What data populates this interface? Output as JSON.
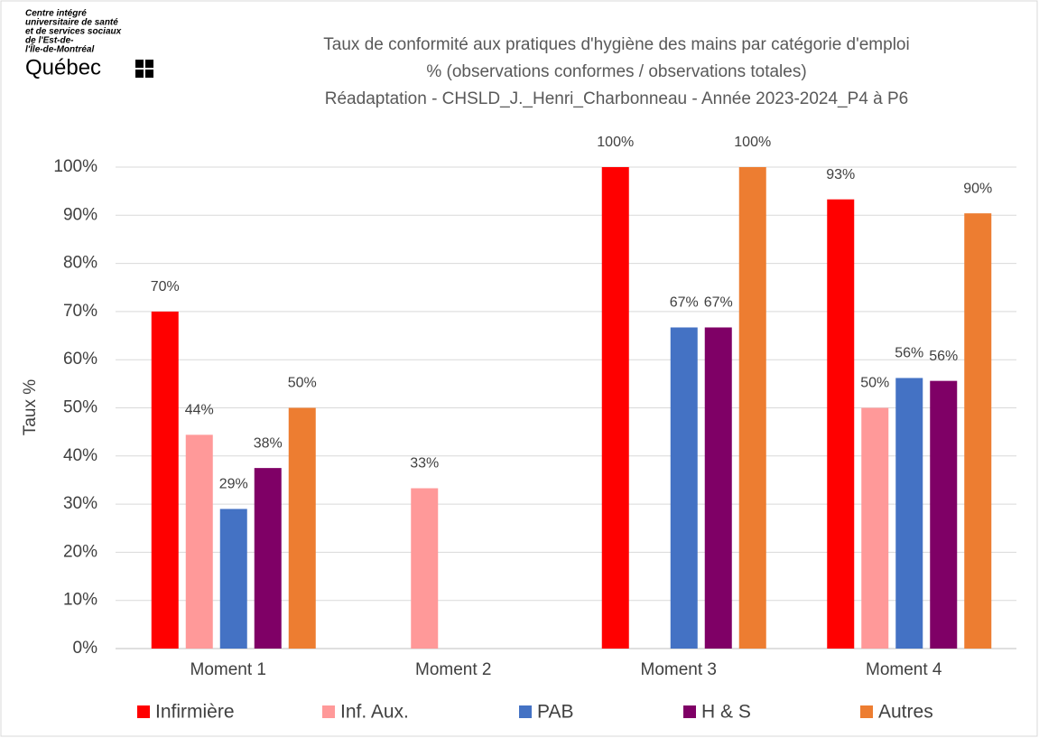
{
  "logo": {
    "lines": [
      "Centre intégré",
      "universitaire de santé",
      "et de services sociaux",
      "de l'Est-de-",
      "l'Île-de-Montréal"
    ],
    "brand": "Québec"
  },
  "chart_data": {
    "type": "bar",
    "title": [
      "Taux de conformité aux pratiques d'hygiène des mains par catégorie d'emploi",
      "% (observations conformes / observations totales)",
      "Réadaptation - CHSLD_J._Henri_Charbonneau - Année 2023-2024_P4 à P6"
    ],
    "ylabel": "Taux %",
    "categories": [
      "Moment 1",
      "Moment 2",
      "Moment 3",
      "Moment 4"
    ],
    "series": [
      {
        "name": "Infirmière",
        "color": "#ff0000",
        "values": [
          70,
          null,
          100,
          93.3
        ],
        "value_labels": [
          "70%",
          null,
          "100%",
          "93%"
        ]
      },
      {
        "name": "Inf. Aux.",
        "color": "#ff9999",
        "values": [
          44.4,
          33.3,
          null,
          50
        ],
        "value_labels": [
          "44%",
          "33%",
          null,
          "50%"
        ]
      },
      {
        "name": "PAB",
        "color": "#4472c4",
        "values": [
          29,
          null,
          66.7,
          56.2
        ],
        "value_labels": [
          "29%",
          null,
          "67%",
          "56%"
        ]
      },
      {
        "name": "H & S",
        "color": "#7f0066",
        "values": [
          37.5,
          null,
          66.7,
          55.6
        ],
        "value_labels": [
          "38%",
          null,
          "67%",
          "56%"
        ]
      },
      {
        "name": "Autres",
        "color": "#ed7d31",
        "values": [
          50,
          null,
          100,
          90.4
        ],
        "value_labels": [
          "50%",
          null,
          "100%",
          "90%"
        ]
      }
    ],
    "ylim": [
      0,
      100
    ],
    "yticks": [
      {
        "value": 0,
        "label": "0%"
      },
      {
        "value": 10,
        "label": "10%"
      },
      {
        "value": 20,
        "label": "20%"
      },
      {
        "value": 30,
        "label": "30%"
      },
      {
        "value": 40,
        "label": "40%"
      },
      {
        "value": 50,
        "label": "50%"
      },
      {
        "value": 60,
        "label": "60%"
      },
      {
        "value": 70,
        "label": "70%"
      },
      {
        "value": 80,
        "label": "80%"
      },
      {
        "value": 90,
        "label": "90%"
      },
      {
        "value": 100,
        "label": "100%"
      }
    ],
    "grid": true,
    "legend": "bottom"
  }
}
